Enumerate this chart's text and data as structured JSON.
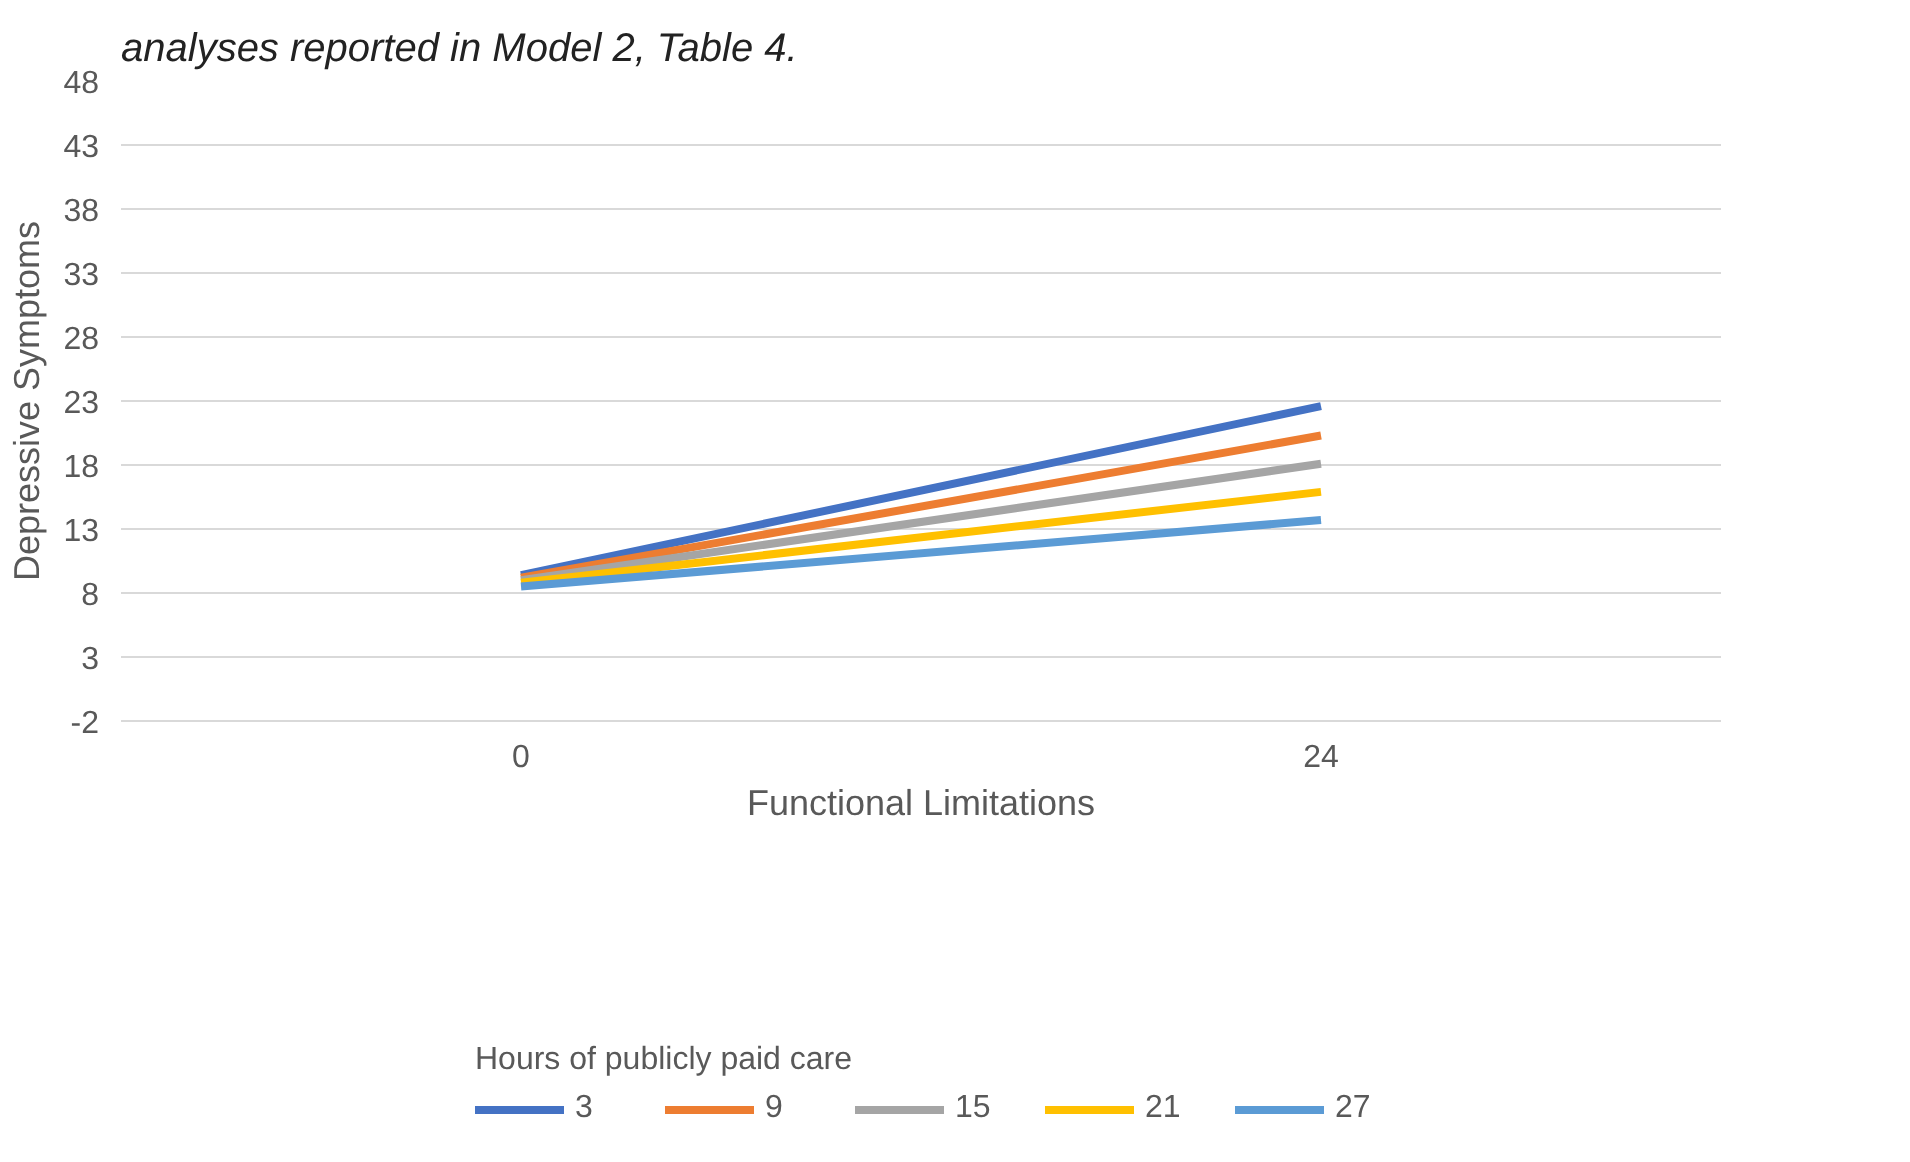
{
  "chart_data": {
    "type": "line",
    "title": "analyses reported in Model 2, Table 4.",
    "xlabel": "Functional Limitations",
    "ylabel": "Depressive Symptoms",
    "legend_title": "Hours of publicly paid care",
    "categories": [
      "0",
      "24"
    ],
    "series": [
      {
        "name": "3",
        "color": "#4472c4",
        "values": [
          9.4,
          22.6
        ]
      },
      {
        "name": "9",
        "color": "#ed7d31",
        "values": [
          9.2,
          20.3
        ]
      },
      {
        "name": "15",
        "color": "#a5a5a5",
        "values": [
          9.0,
          18.1
        ]
      },
      {
        "name": "21",
        "color": "#ffc000",
        "values": [
          8.8,
          15.9
        ]
      },
      {
        "name": "27",
        "color": "#5b9bd5",
        "values": [
          8.5,
          13.7
        ]
      }
    ],
    "ylim": [
      -2,
      48
    ],
    "yticks": [
      -2,
      3,
      8,
      13,
      18,
      23,
      28,
      33,
      38,
      43,
      48
    ],
    "grid": "y",
    "legend": "bottom",
    "marker": "none",
    "line_style": "solid"
  }
}
